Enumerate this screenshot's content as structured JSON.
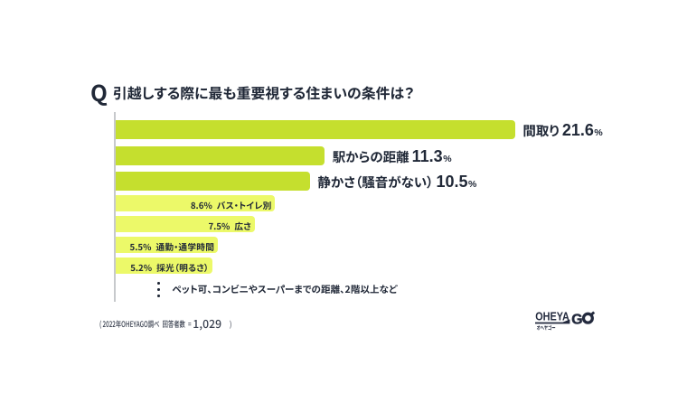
{
  "header": {
    "q": "Q"
  },
  "chart_data": {
    "type": "bar",
    "orientation": "horizontal",
    "title": "引越しする際に最も重要視する住まいの条件は？",
    "categories": [
      "間取り",
      "駅からの距離",
      "静かさ（騒音がない）",
      "バス・トイレ別",
      "広さ",
      "通勤・通学時間",
      "採光（明るさ）"
    ],
    "values": [
      21.6,
      11.3,
      10.5,
      8.6,
      7.5,
      5.5,
      5.2
    ],
    "unit": "%",
    "emphasized_rows": 3,
    "others_note": "ペット可、コンビニやスーパーまでの距離、2階以上など",
    "xlim": [
      0,
      22
    ],
    "gridlines": false,
    "bar_color_primary": "#c5df2e",
    "bar_color_secondary": "#ecf969"
  },
  "footnote": {
    "open": "(",
    "survey": "2022年OHEYAGO調べ",
    "label": "回答者数",
    "equals": "=",
    "value": "1,029",
    "close": ")"
  },
  "logo": {
    "wordmark": "OHEYA",
    "go": "GO",
    "kana": "オヘヤゴー"
  },
  "colors": {
    "text": "#202837",
    "footnote_text": "#3a4150",
    "axis": "#c7c9cc",
    "background": "#ffffff"
  }
}
